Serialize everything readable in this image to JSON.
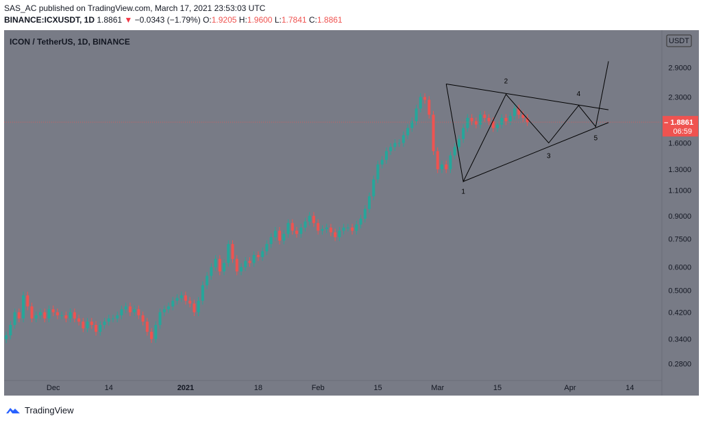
{
  "header": {
    "line1": "SAS_AC published on TradingView.com, March 17, 2021 23:53:03 UTC",
    "symbol": "BINANCE:ICXUSDT, 1D",
    "last": "1.8861",
    "change": "−0.0343 (−1.79%)",
    "o_label": "O:",
    "o": "1.9205",
    "h_label": "H:",
    "h": "1.9600",
    "l_label": "L:",
    "l": "1.7841",
    "c_label": "C:",
    "c": "1.8861"
  },
  "chart_data": {
    "type": "candlestick",
    "title": "ICON / TetherUS, 1D, BINANCE",
    "currency": "USDT",
    "y_scale": "log",
    "ylim": [
      0.245,
      3.9
    ],
    "y_ticks": [
      2.9,
      2.3,
      1.6,
      1.3,
      1.1,
      0.9,
      0.75,
      0.6,
      0.5,
      0.42,
      0.34,
      0.28
    ],
    "y_tick_labels": [
      "2.9000",
      "2.3000",
      "1.6000",
      "1.3000",
      "1.1000",
      "0.9000",
      "0.7500",
      "0.6000",
      "0.5000",
      "0.4200",
      "0.3400",
      "0.2800"
    ],
    "x_ticks": [
      "Dec",
      "14",
      "2021",
      "18",
      "Feb",
      "15",
      "Mar",
      "15",
      "Apr",
      "14"
    ],
    "x_tick_days": [
      11,
      24,
      42,
      59,
      73,
      87,
      101,
      115,
      132,
      146
    ],
    "x_days_total": 154,
    "last_price": 1.8861,
    "price_label": "1.8861",
    "countdown_label": "06:59",
    "closes": [
      0.35,
      0.38,
      0.42,
      0.4,
      0.48,
      0.44,
      0.4,
      0.41,
      0.42,
      0.4,
      0.43,
      0.42,
      0.41,
      0.41,
      0.4,
      0.42,
      0.4,
      0.39,
      0.37,
      0.39,
      0.38,
      0.36,
      0.38,
      0.39,
      0.4,
      0.4,
      0.41,
      0.43,
      0.44,
      0.42,
      0.43,
      0.41,
      0.39,
      0.36,
      0.34,
      0.38,
      0.42,
      0.43,
      0.44,
      0.46,
      0.47,
      0.48,
      0.46,
      0.45,
      0.42,
      0.46,
      0.52,
      0.56,
      0.6,
      0.64,
      0.58,
      0.62,
      0.72,
      0.64,
      0.58,
      0.6,
      0.63,
      0.62,
      0.66,
      0.65,
      0.68,
      0.72,
      0.76,
      0.8,
      0.74,
      0.78,
      0.85,
      0.8,
      0.78,
      0.82,
      0.86,
      0.9,
      0.85,
      0.8,
      0.81,
      0.82,
      0.79,
      0.76,
      0.8,
      0.82,
      0.82,
      0.8,
      0.84,
      0.88,
      0.95,
      1.05,
      1.2,
      1.35,
      1.4,
      1.5,
      1.55,
      1.6,
      1.6,
      1.7,
      1.8,
      1.9,
      2.1,
      2.3,
      2.25,
      2.0,
      1.5,
      1.3,
      1.35,
      1.3,
      1.45,
      1.55,
      1.65,
      1.8,
      1.95,
      1.9,
      1.85,
      2.0,
      1.95,
      1.9,
      1.8,
      1.85,
      1.95,
      1.9,
      1.98,
      2.1,
      2.0,
      1.95,
      1.8861
    ],
    "annotation_labels": [
      "1",
      "2",
      "3",
      "4",
      "5"
    ],
    "pattern_points": {
      "p0": [
        103,
        2.55
      ],
      "p1": [
        107,
        1.18
      ],
      "p2": [
        117,
        2.35
      ],
      "p3": [
        127,
        1.6
      ],
      "p4": [
        134,
        2.15
      ],
      "p5": [
        138,
        1.82
      ],
      "p6": [
        141,
        3.05
      ],
      "upper_end": [
        141,
        2.08
      ],
      "lower_end": [
        141,
        1.88
      ]
    }
  },
  "colors": {
    "background": "#787b86",
    "up": "#26a69a",
    "down": "#ef5350",
    "price_line": "#ef5350",
    "axis_text": "#131722",
    "pattern": "#000000"
  },
  "footer": {
    "brand": "TradingView"
  }
}
